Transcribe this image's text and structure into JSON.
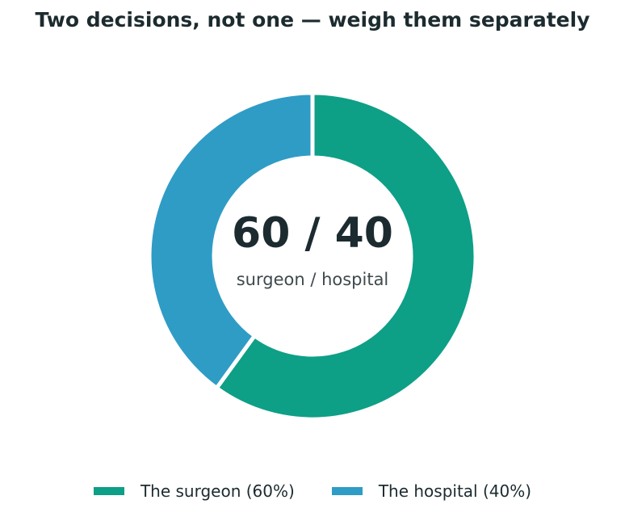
{
  "chart_data": {
    "type": "pie",
    "title": "Two decisions, not one — weigh them separately",
    "categories": [
      "The surgeon",
      "The hospital"
    ],
    "values": [
      60,
      40
    ],
    "colors": [
      "#0e9f87",
      "#2f9cc6"
    ],
    "donut": true,
    "center_value": "60 / 40",
    "center_caption": "surgeon / hospital",
    "legend": {
      "placement": "bottom",
      "entries": [
        "The surgeon (60%)",
        "The hospital (40%)"
      ]
    }
  }
}
